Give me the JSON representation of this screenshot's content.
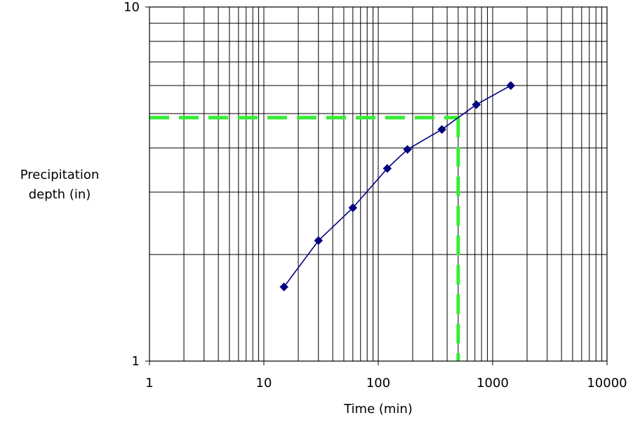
{
  "chart_data": {
    "type": "line",
    "title": "",
    "xlabel": "Time (min)",
    "ylabel": [
      "Precipitation",
      "depth (in)"
    ],
    "xscale": "log",
    "yscale": "log",
    "xlim": [
      1,
      10000
    ],
    "ylim": [
      1,
      10
    ],
    "xticks": [
      1,
      10,
      100,
      1000,
      10000
    ],
    "xtick_labels": [
      "1",
      "10",
      "100",
      "1000",
      "10000"
    ],
    "yticks": [
      1,
      10
    ],
    "ytick_labels": [
      "1",
      "10"
    ],
    "grid": true,
    "legend": "none",
    "series": [
      {
        "marker": "diamond",
        "color": "#000080",
        "x": [
          15,
          30,
          60,
          120,
          180,
          360,
          720,
          1440
        ],
        "y": [
          1.62,
          2.19,
          2.71,
          3.5,
          3.96,
          4.51,
          5.3,
          6.0
        ]
      }
    ],
    "reference_lines": [
      {
        "orientation": "horizontal",
        "value": 4.87,
        "style": "dashed",
        "color": "#33ee33"
      },
      {
        "orientation": "vertical",
        "value": 500,
        "style": "dashed",
        "color": "#33ee33"
      }
    ]
  }
}
